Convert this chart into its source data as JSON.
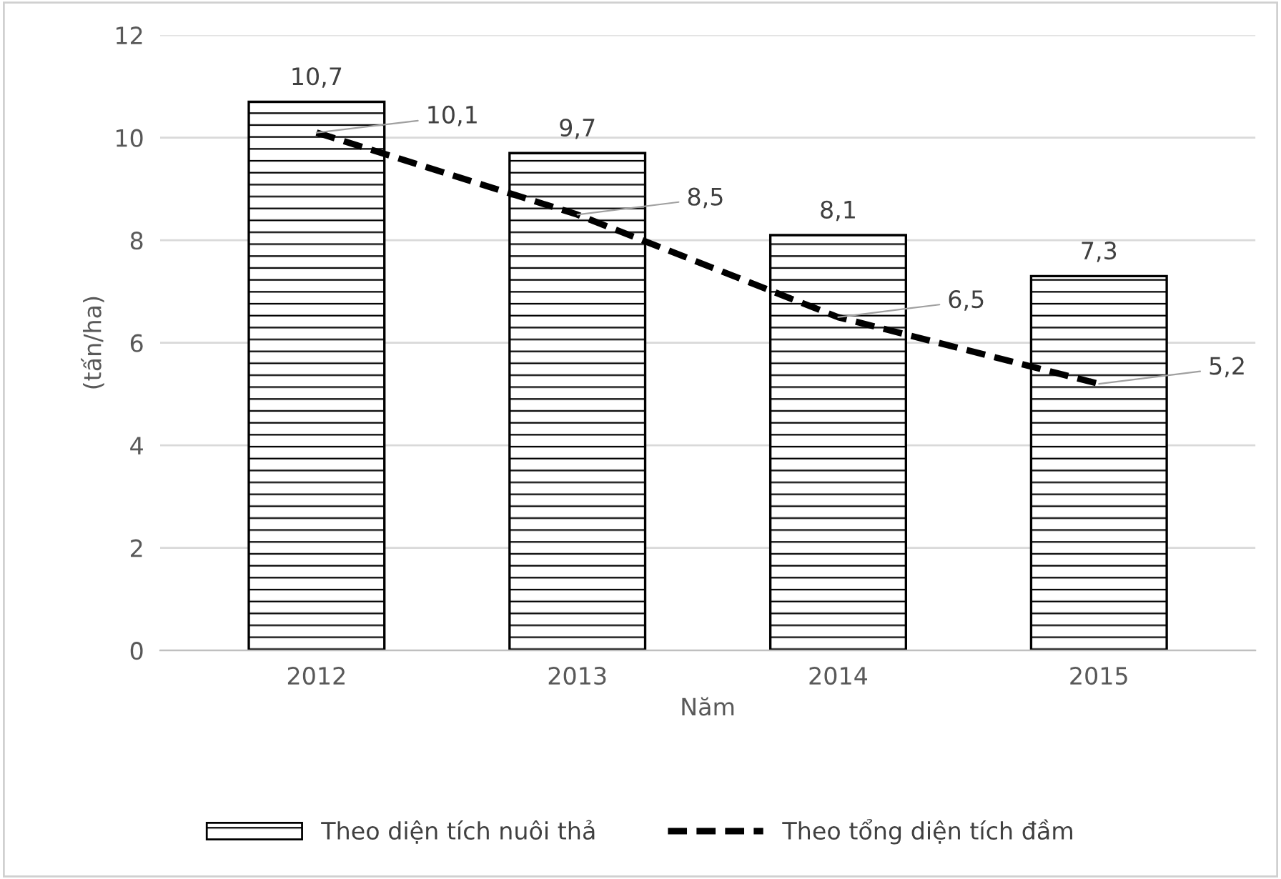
{
  "chart_data": {
    "type": "bar",
    "xlabel": "Năm",
    "ylabel": "(tấn/ha)",
    "categories": [
      "2012",
      "2013",
      "2014",
      "2015"
    ],
    "series": [
      {
        "name": "Theo diện tích nuôi thả",
        "color": "#000000",
        "values": [
          10.7,
          9.7,
          8.1,
          7.3
        ],
        "value_labels": [
          "10,7",
          "9,7",
          "8,1",
          "7,3"
        ]
      },
      {
        "name": "Theo tổng diện tích đầm",
        "type": "line",
        "color": "#000000",
        "line_style": "dashed",
        "values": [
          10.1,
          8.5,
          6.5,
          5.2
        ],
        "value_labels": [
          "10,1",
          "8,5",
          "6,5",
          "5,2"
        ]
      }
    ],
    "ylim": [
      0,
      12
    ],
    "yticks": [
      0,
      2,
      4,
      6,
      8,
      10,
      12
    ],
    "grid": "y",
    "legend": "bottom",
    "marker": "none"
  }
}
